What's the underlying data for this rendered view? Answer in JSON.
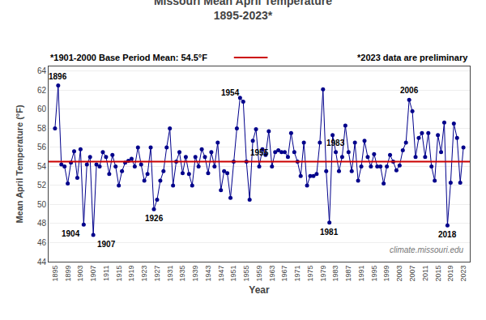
{
  "chart_data": {
    "type": "line",
    "title": "Missouri Mean April Temperature",
    "subtitle": "1895-2023*",
    "xlabel": "Year",
    "ylabel": "Mean April Temperature (°F)",
    "x": [
      1895,
      1896,
      1897,
      1898,
      1899,
      1900,
      1901,
      1902,
      1903,
      1904,
      1905,
      1906,
      1907,
      1908,
      1909,
      1910,
      1911,
      1912,
      1913,
      1914,
      1915,
      1916,
      1917,
      1918,
      1919,
      1920,
      1921,
      1922,
      1923,
      1924,
      1925,
      1926,
      1927,
      1928,
      1929,
      1930,
      1931,
      1932,
      1933,
      1934,
      1935,
      1936,
      1937,
      1938,
      1939,
      1940,
      1941,
      1942,
      1943,
      1944,
      1945,
      1946,
      1947,
      1948,
      1949,
      1950,
      1951,
      1952,
      1953,
      1954,
      1955,
      1956,
      1957,
      1958,
      1959,
      1960,
      1961,
      1962,
      1963,
      1964,
      1965,
      1966,
      1967,
      1968,
      1969,
      1970,
      1971,
      1972,
      1973,
      1974,
      1975,
      1976,
      1977,
      1978,
      1979,
      1980,
      1981,
      1982,
      1983,
      1984,
      1985,
      1986,
      1987,
      1988,
      1989,
      1990,
      1991,
      1992,
      1993,
      1994,
      1995,
      1996,
      1997,
      1998,
      1999,
      2000,
      2001,
      2002,
      2003,
      2004,
      2005,
      2006,
      2007,
      2008,
      2009,
      2010,
      2011,
      2012,
      2013,
      2014,
      2015,
      2016,
      2017,
      2018,
      2019,
      2020,
      2021,
      2022,
      2023
    ],
    "series": [
      {
        "color": "#00008B",
        "marker": "circle",
        "line_style": "solid",
        "values": [
          58.0,
          62.5,
          54.2,
          54.0,
          52.2,
          54.4,
          55.6,
          52.8,
          55.8,
          47.9,
          54.2,
          55.0,
          46.8,
          54.2,
          54.0,
          55.5,
          55.0,
          53.2,
          55.2,
          54.0,
          52.0,
          53.5,
          54.4,
          54.6,
          54.8,
          54.0,
          56.0,
          54.2,
          52.5,
          53.2,
          56.0,
          49.5,
          50.5,
          52.5,
          53.5,
          56.0,
          58.0,
          52.0,
          54.5,
          55.5,
          53.3,
          55.0,
          53.2,
          52.0,
          55.0,
          54.0,
          55.8,
          55.0,
          53.3,
          55.5,
          54.0,
          56.5,
          51.5,
          53.5,
          53.3,
          50.7,
          54.5,
          58.0,
          61.2,
          60.8,
          54.5,
          50.5,
          56.7,
          57.9,
          54.0,
          55.8,
          55.2,
          57.7,
          54.0,
          55.5,
          55.7,
          55.5,
          55.5,
          55.0,
          57.5,
          55.5,
          54.5,
          53.0,
          56.5,
          52.0,
          53.0,
          53.0,
          53.2,
          56.5,
          62.1,
          53.5,
          48.1,
          57.3,
          55.5,
          53.5,
          55.0,
          58.3,
          55.5,
          53.5,
          56.5,
          52.5,
          54.0,
          56.7,
          55.0,
          54.0,
          55.3,
          54.0,
          54.0,
          52.2,
          54.0,
          55.2,
          54.5,
          53.6,
          54.1,
          55.7,
          56.5,
          61.0,
          59.8,
          55.0,
          57.0,
          57.5,
          55.0,
          57.5,
          54.0,
          52.5,
          57.3,
          55.5,
          58.6,
          47.8,
          52.3,
          58.5,
          57.0,
          52.3,
          56.0
        ]
      }
    ],
    "xlim": [
      1893,
      2025
    ],
    "xticks": [
      1895,
      1899,
      1903,
      1907,
      1911,
      1915,
      1919,
      1923,
      1927,
      1931,
      1935,
      1939,
      1943,
      1947,
      1951,
      1955,
      1959,
      1963,
      1967,
      1971,
      1975,
      1979,
      1983,
      1987,
      1991,
      1995,
      1999,
      2003,
      2007,
      2011,
      2015,
      2019,
      2023
    ],
    "ylim": [
      44.0,
      64.5
    ],
    "yticks": [
      44,
      46,
      48,
      50,
      52,
      54,
      56,
      58,
      60,
      62,
      64
    ],
    "grid": "y",
    "baseline": {
      "value": 54.5,
      "label": "*1901-2000 Base Period Mean: 54.5°F",
      "color": "#CC0000"
    },
    "note": "*2023 data are preliminary",
    "watermark": "climate.missouri.edu",
    "annotations": [
      {
        "text": "1896",
        "x": 1896
      },
      {
        "text": "1904",
        "x": 1904
      },
      {
        "text": "1907",
        "x": 1907
      },
      {
        "text": "1926",
        "x": 1926
      },
      {
        "text": "1954",
        "x": 1954
      },
      {
        "text": "1955",
        "x": 1955
      },
      {
        "text": "1981",
        "x": 1981
      },
      {
        "text": "1983",
        "x": 1983
      },
      {
        "text": "2006",
        "x": 2006
      },
      {
        "text": "2018",
        "x": 2018
      }
    ]
  }
}
